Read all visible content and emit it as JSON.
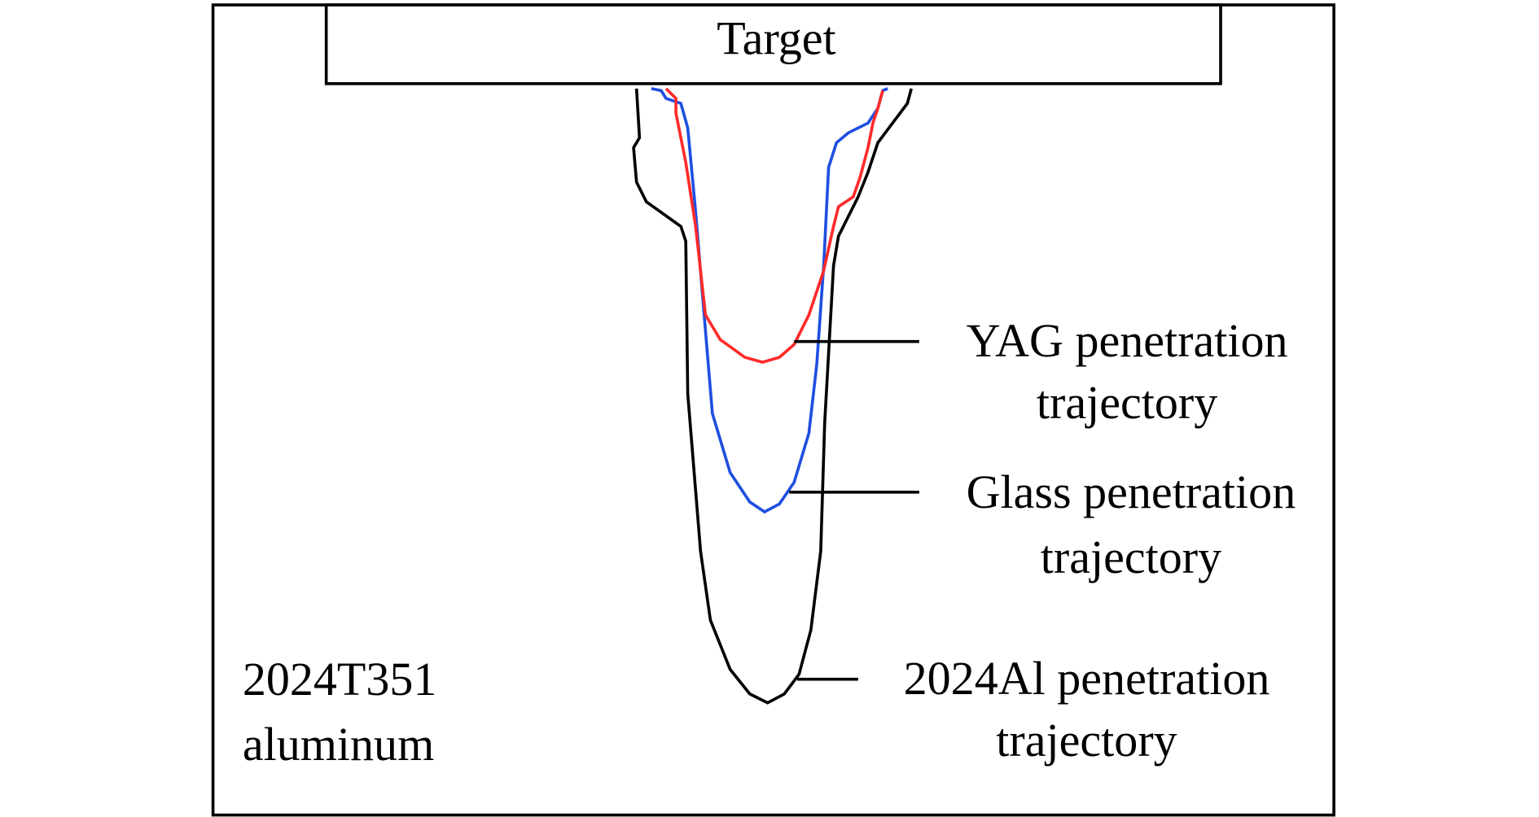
{
  "target_label": "Target",
  "material_label": {
    "line1": "2024T351",
    "line2": "aluminum"
  },
  "trajectories": [
    {
      "name": "YAG",
      "line1": "YAG penetration",
      "line2": "trajectory",
      "color": "#ff2a2a"
    },
    {
      "name": "Glass",
      "line1": "Glass penetration",
      "line2": "trajectory",
      "color": "#1f4fe0"
    },
    {
      "name": "2024Al",
      "line1": "2024Al penetration",
      "line2": "trajectory",
      "color": "#000000"
    }
  ]
}
